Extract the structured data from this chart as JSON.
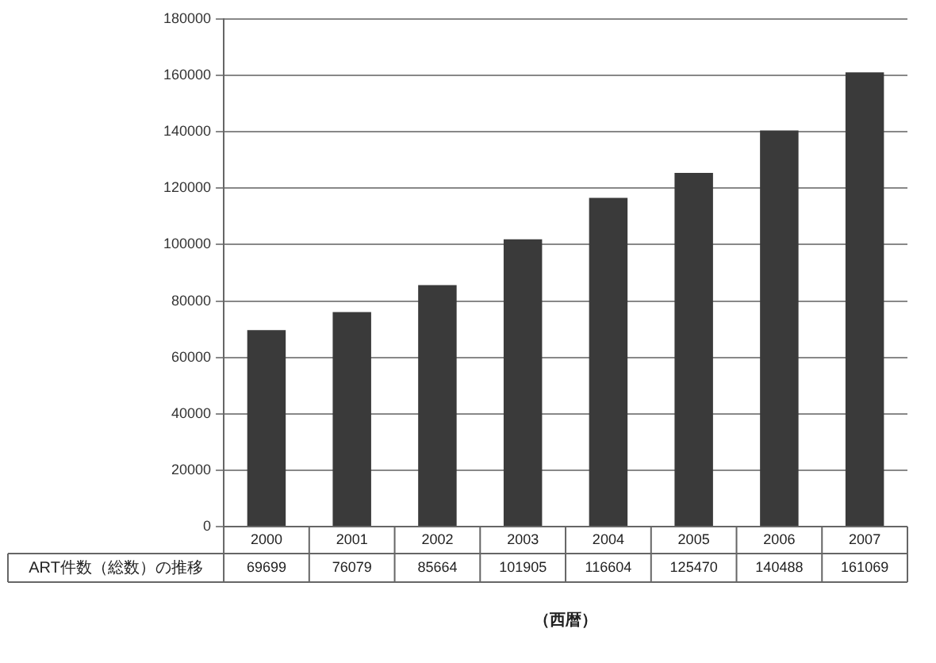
{
  "chart_data": {
    "type": "bar",
    "xlabel": "（西暦）",
    "categories": [
      "2000",
      "2001",
      "2002",
      "2003",
      "2004",
      "2005",
      "2006",
      "2007"
    ],
    "series": [
      {
        "name": "ART件数（総数）の推移",
        "color": "#3a3a3a",
        "values": [
          69699,
          76079,
          85664,
          101905,
          116604,
          125470,
          140488,
          161069
        ]
      }
    ],
    "ylim": [
      0,
      180000
    ],
    "yticks": [
      0,
      20000,
      40000,
      60000,
      80000,
      100000,
      120000,
      140000,
      160000,
      180000
    ],
    "grid": "y",
    "data_labels": true,
    "legend": false
  }
}
